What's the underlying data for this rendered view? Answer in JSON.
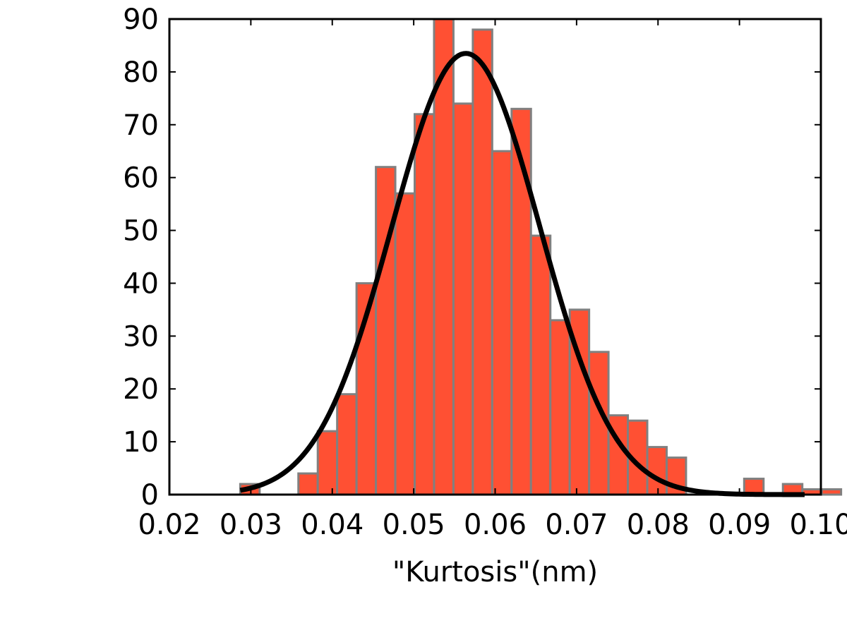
{
  "chart_data": {
    "type": "bar",
    "subtype": "histogram",
    "title": "",
    "xlabel": "\"Kurtosis\"(nm)",
    "ylabel": "",
    "xlim": [
      0.02,
      0.1
    ],
    "ylim": [
      0,
      90
    ],
    "x_ticks": [
      "0.02",
      "0.03",
      "0.04",
      "0.05",
      "0.06",
      "0.07",
      "0.08",
      "0.09",
      "0.10"
    ],
    "y_ticks": [
      "0",
      "10",
      "20",
      "30",
      "40",
      "50",
      "60",
      "70",
      "80",
      "90"
    ],
    "grid": false,
    "legend": "none",
    "bins": {
      "start": 0.0287,
      "width": 0.00238,
      "counts": [
        2,
        0,
        0,
        4,
        12,
        19,
        40,
        62,
        57,
        72,
        90,
        74,
        88,
        65,
        73,
        49,
        33,
        35,
        27,
        15,
        14,
        9,
        7,
        0,
        0,
        0,
        3,
        0,
        2,
        1,
        1
      ]
    },
    "fit": {
      "type": "normal",
      "mean": 0.0564,
      "peak": 83.5,
      "sigma": 0.0091,
      "x_range": [
        0.0287,
        0.098
      ]
    },
    "colors": {
      "bar_fill": "#ff5033",
      "bar_edge": "#808080",
      "fit_line": "#000000",
      "axes": "#000000"
    }
  }
}
